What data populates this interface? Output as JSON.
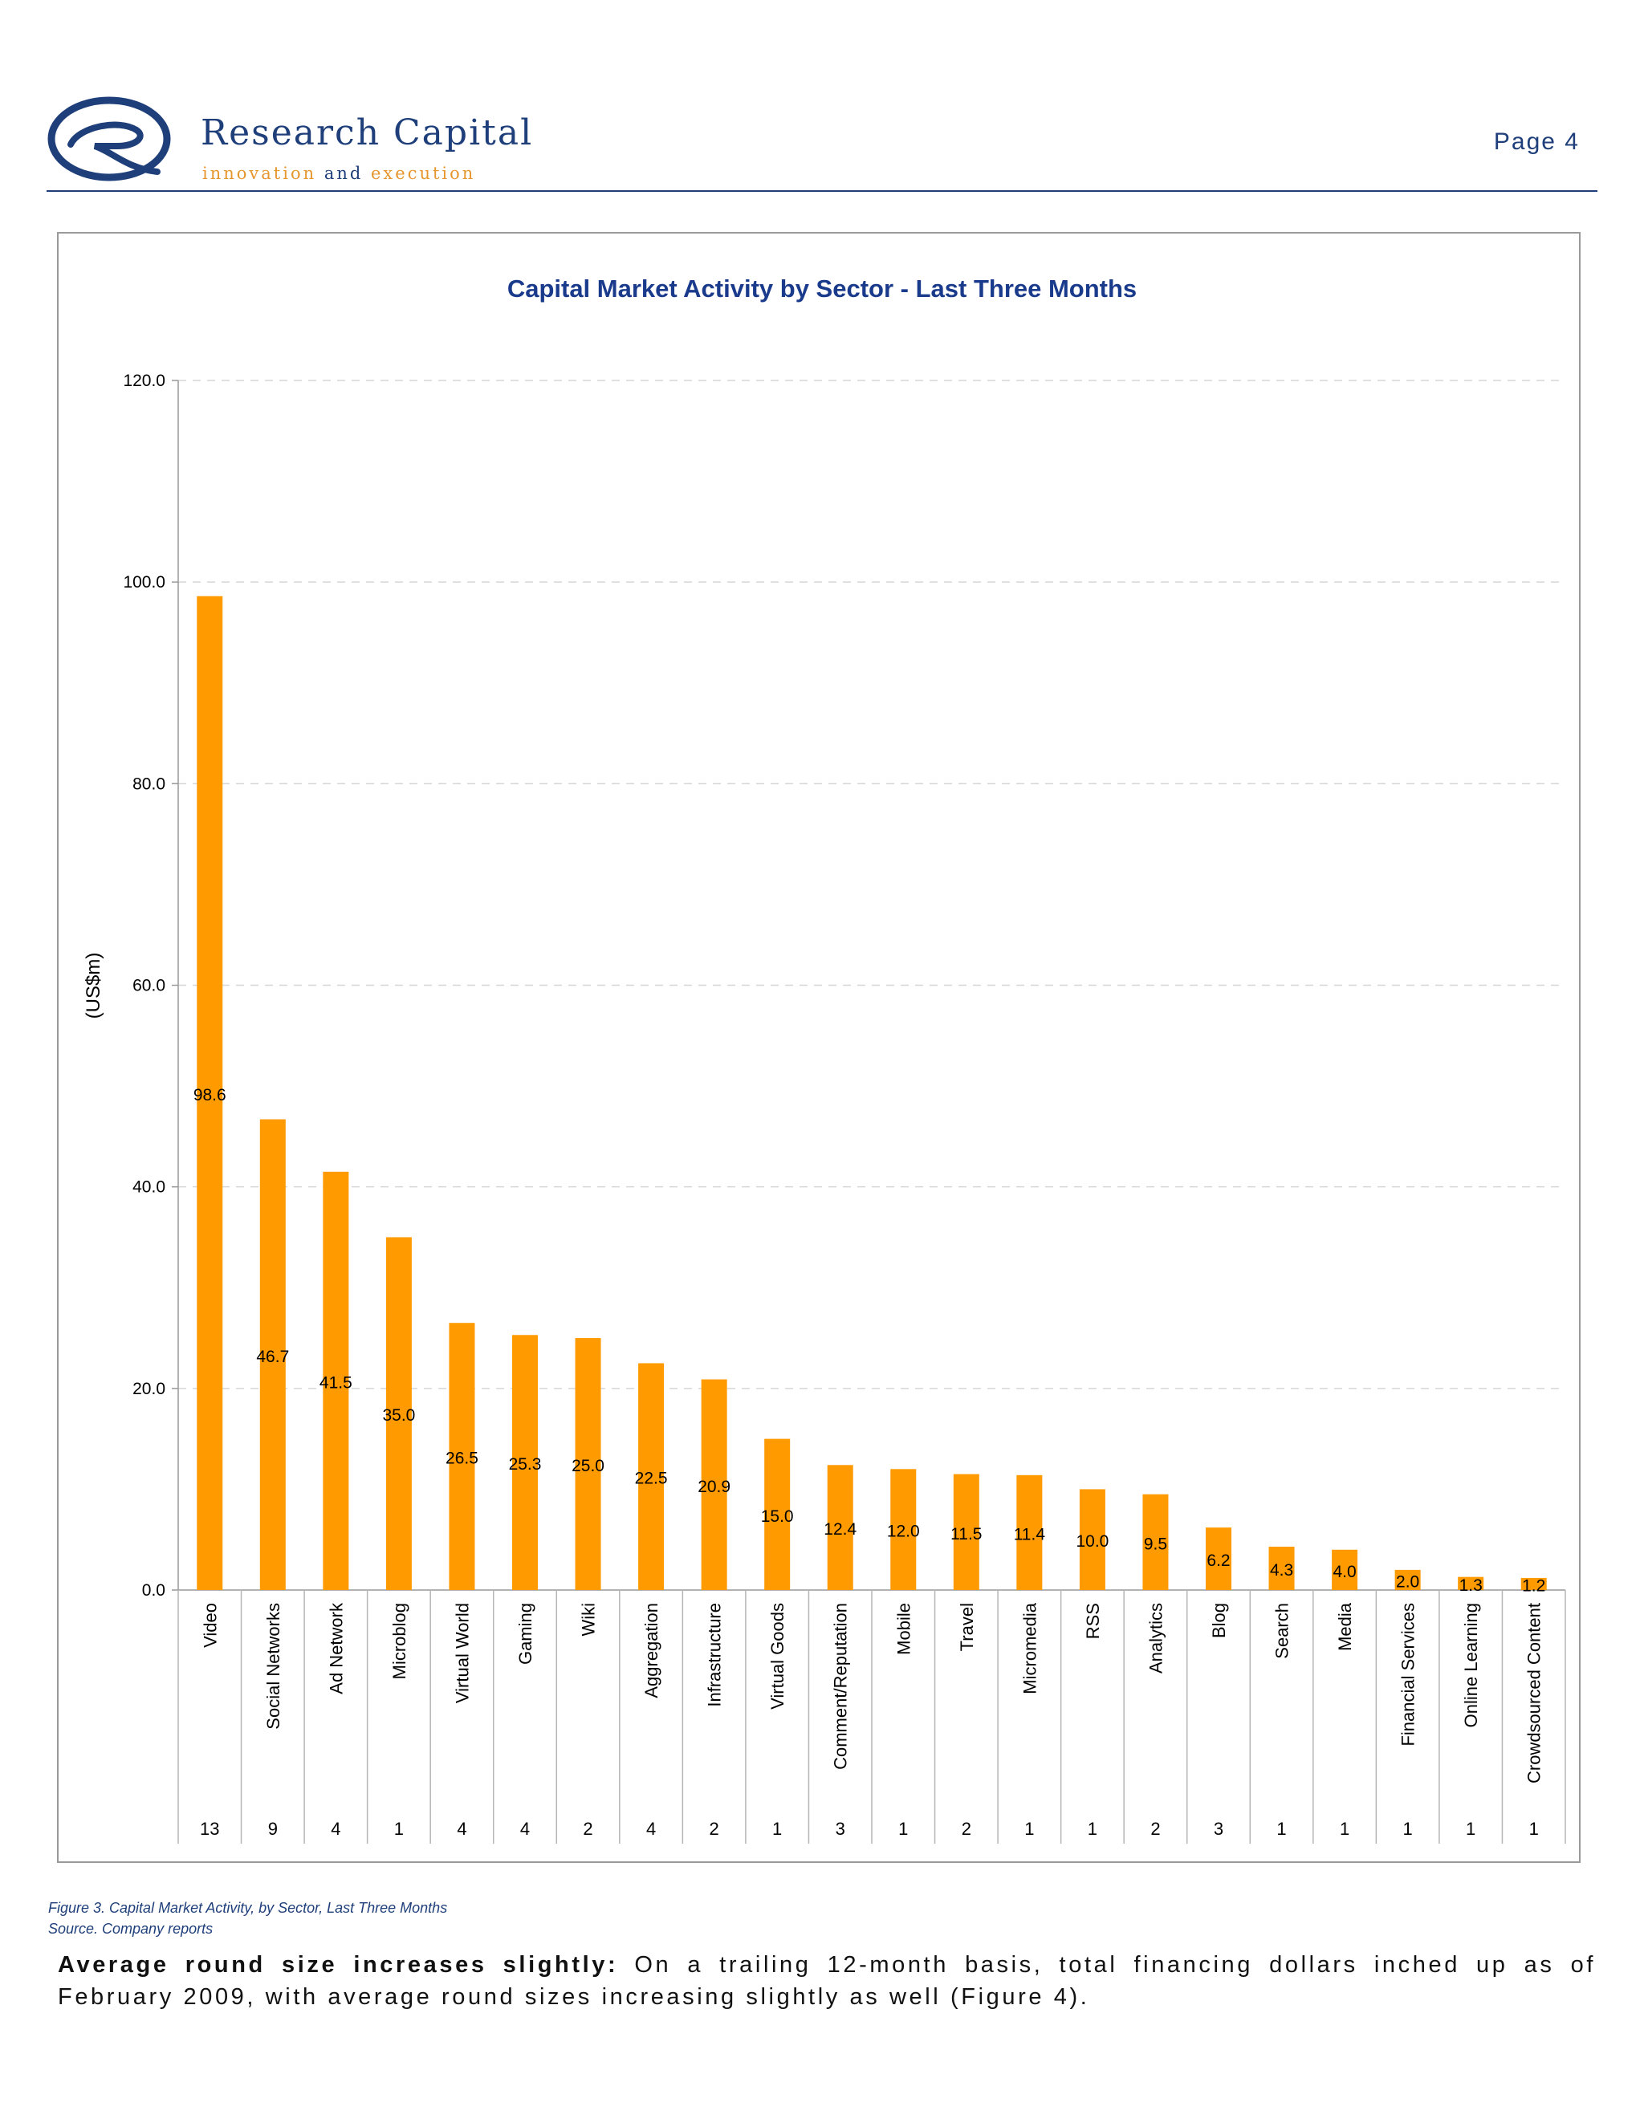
{
  "header": {
    "brand_name": "Research Capital",
    "tagline_part1": "innovation",
    "tagline_and": "and",
    "tagline_part2": "execution",
    "page_label": "Page 4",
    "colors": {
      "navy": "#1f3f7a",
      "orange": "#e6962e"
    }
  },
  "chart_data": {
    "type": "bar",
    "title": "Capital Market Activity by Sector - Last Three Months",
    "xlabel": "",
    "ylabel": "(US$m)",
    "ylim": [
      0,
      120
    ],
    "yticks": [
      "0.0",
      "20.0",
      "40.0",
      "60.0",
      "80.0",
      "100.0",
      "120.0"
    ],
    "grid": true,
    "bar_color": "#FF9A00",
    "categories": [
      "Video",
      "Social Networks",
      "Ad Network",
      "Microblog",
      "Virtual World",
      "Gaming",
      "Wiki",
      "Aggregation",
      "Infrastructure",
      "Virtual Goods",
      "Comment/Reputation",
      "Mobile",
      "Travel",
      "Micromedia",
      "RSS",
      "Analytics",
      "Blog",
      "Search",
      "Media",
      "Financial Services",
      "Online Learning",
      "Crowdsourced Content"
    ],
    "values": [
      98.6,
      46.7,
      41.5,
      35.0,
      26.5,
      25.3,
      25.0,
      22.5,
      20.9,
      15.0,
      12.4,
      12.0,
      11.5,
      11.4,
      10.0,
      9.5,
      6.2,
      4.3,
      4.0,
      2.0,
      1.3,
      1.2
    ],
    "value_labels": [
      "98.6",
      "46.7",
      "41.5",
      "35.0",
      "26.5",
      "25.3",
      "25.0",
      "22.5",
      "20.9",
      "15.0",
      "12.4",
      "12.0",
      "11.5",
      "11.4",
      "10.0",
      "9.5",
      "6.2",
      "4.3",
      "4.0",
      "2.0",
      "1.3",
      "1.2"
    ],
    "deal_counts": [
      "13",
      "9",
      "4",
      "1",
      "4",
      "4",
      "2",
      "4",
      "2",
      "1",
      "3",
      "1",
      "2",
      "1",
      "1",
      "2",
      "3",
      "1",
      "1",
      "1",
      "1",
      "1"
    ]
  },
  "caption": {
    "figure": "Figure 3. Capital Market Activity, by Sector, Last Three Months",
    "source": "Source. Company reports"
  },
  "body": {
    "lead": "Average round size increases slightly:",
    "text": " On a trailing 12-month basis, total financing dollars inched up as of February 2009, with average round sizes increasing slightly as well (Figure 4)."
  }
}
